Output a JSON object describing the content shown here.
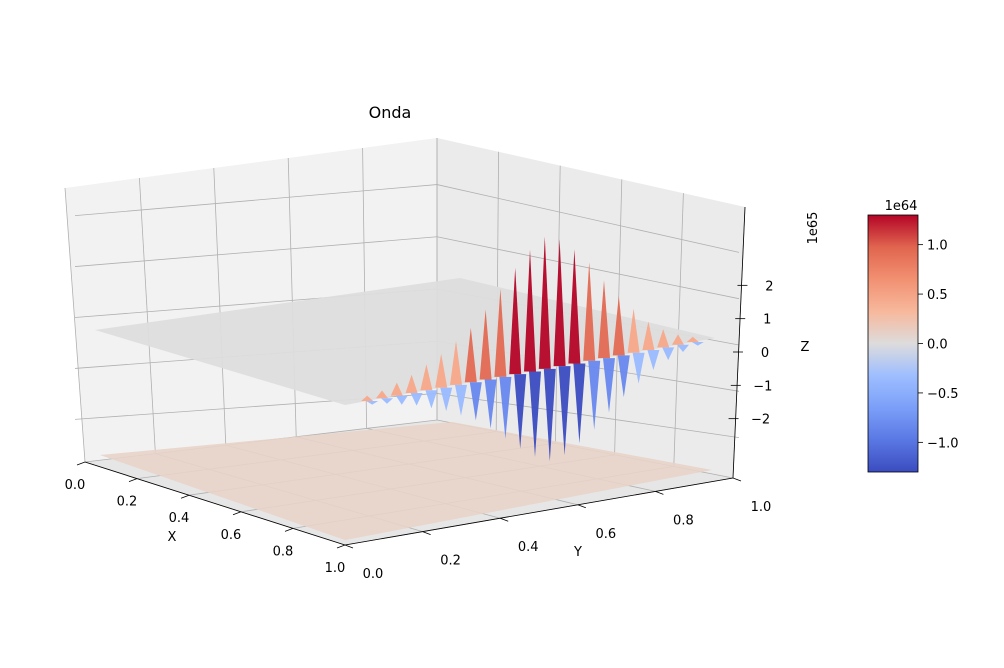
{
  "chart_data": {
    "type": "surface",
    "title": "Onda",
    "xlabel": "X",
    "ylabel": "Y",
    "zlabel": "Z",
    "x_ticks": [
      "0.0",
      "0.2",
      "0.4",
      "0.6",
      "0.8",
      "1.0"
    ],
    "y_ticks": [
      "0.0",
      "0.2",
      "0.4",
      "0.6",
      "0.8",
      "1.0"
    ],
    "z_ticks": [
      "−2",
      "−1",
      "0",
      "1",
      "2"
    ],
    "z_offset_label": "1e65",
    "xlim": [
      0,
      1
    ],
    "ylim": [
      0,
      1
    ],
    "zlim": [
      -2.7,
      2.7
    ],
    "z_scale_exponent": 65,
    "colormap": "coolwarm",
    "colorbar": {
      "offset_label": "1e64",
      "ticks": [
        "1.0",
        "0.5",
        "0.0",
        "−0.5",
        "−1.0"
      ],
      "tick_values": [
        1.0,
        0.5,
        0.0,
        -0.5,
        -1.0
      ],
      "range": [
        -1.3,
        1.3
      ]
    },
    "surfaces": [
      {
        "name": "",
        "description_value": 0.0,
        "color": "#dddddd"
      },
      {
        "name": "",
        "description_value": 0.0,
        "color": "#e8d3c8"
      }
    ],
    "spikes": [
      {
        "y": 0.06,
        "amp": 0.1
      },
      {
        "y": 0.1,
        "amp": 0.15
      },
      {
        "y": 0.14,
        "amp": 0.25
      },
      {
        "y": 0.18,
        "amp": 0.35
      },
      {
        "y": 0.22,
        "amp": 0.5
      },
      {
        "y": 0.26,
        "amp": 0.65
      },
      {
        "y": 0.3,
        "amp": 0.85
      },
      {
        "y": 0.34,
        "amp": 1.05
      },
      {
        "y": 0.38,
        "amp": 1.35
      },
      {
        "y": 0.42,
        "amp": 1.7
      },
      {
        "y": 0.46,
        "amp": 2.05
      },
      {
        "y": 0.5,
        "amp": 2.35
      },
      {
        "y": 0.54,
        "amp": 2.55
      },
      {
        "y": 0.58,
        "amp": 2.45
      },
      {
        "y": 0.62,
        "amp": 2.2
      },
      {
        "y": 0.66,
        "amp": 1.9
      },
      {
        "y": 0.7,
        "amp": 1.5
      },
      {
        "y": 0.74,
        "amp": 1.15
      },
      {
        "y": 0.78,
        "amp": 0.85
      },
      {
        "y": 0.82,
        "amp": 0.55
      },
      {
        "y": 0.86,
        "amp": 0.35
      },
      {
        "y": 0.9,
        "amp": 0.2
      },
      {
        "y": 0.94,
        "amp": 0.1
      }
    ]
  }
}
